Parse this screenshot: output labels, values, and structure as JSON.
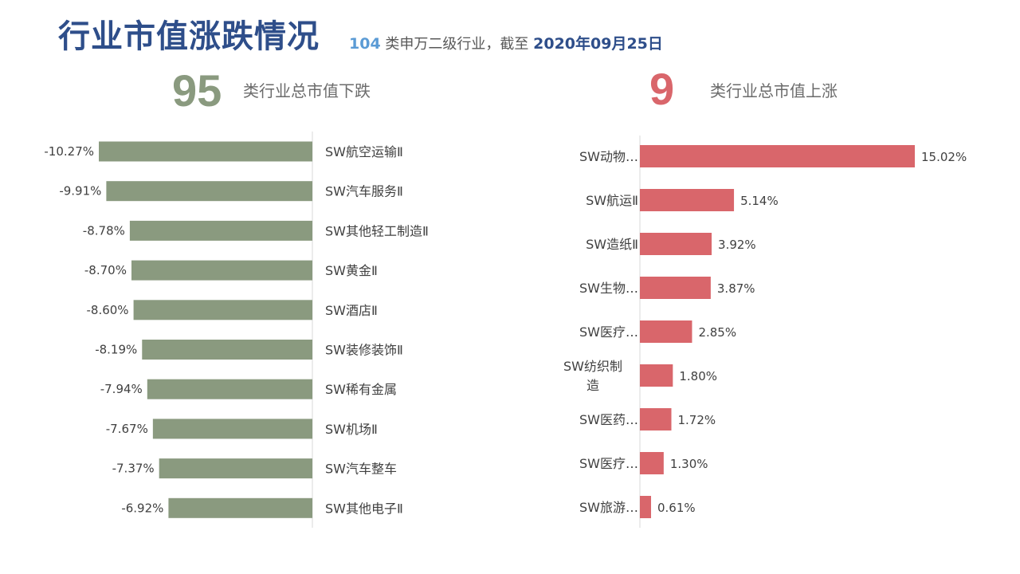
{
  "header": {
    "title": "行业市值涨跌情况",
    "subtitle_count": "104",
    "subtitle_text": " 类申万二级行业，截至 ",
    "subtitle_date": "2020年09月25日"
  },
  "summary": {
    "down_count": "95",
    "down_label": "类行业总市值下跌",
    "up_count": "9",
    "up_label": "类行业总市值上涨"
  },
  "colors": {
    "down_bar": "#8A9A7F",
    "up_bar": "#D9666B",
    "title": "#2E4E8A",
    "axis": "#D9D9D9"
  },
  "chart_data": [
    {
      "type": "bar",
      "orientation": "horizontal",
      "categories": [
        "SW航空运输Ⅱ",
        "SW汽车服务Ⅱ",
        "SW其他轻工制造Ⅱ",
        "SW黄金Ⅱ",
        "SW酒店Ⅱ",
        "SW装修装饰Ⅱ",
        "SW稀有金属",
        "SW机场Ⅱ",
        "SW汽车整车",
        "SW其他电子Ⅱ"
      ],
      "values": [
        -10.27,
        -9.91,
        -8.78,
        -8.7,
        -8.6,
        -8.19,
        -7.94,
        -7.67,
        -7.37,
        -6.92
      ],
      "value_labels": [
        "-10.27%",
        "-9.91%",
        "-8.78%",
        "-8.70%",
        "-8.60%",
        "-8.19%",
        "-7.94%",
        "-7.67%",
        "-7.37%",
        "-6.92%"
      ],
      "grid": false,
      "legend": "none"
    },
    {
      "type": "bar",
      "orientation": "horizontal",
      "categories": [
        "SW动物…",
        "SW航运Ⅱ",
        "SW造纸Ⅱ",
        "SW生物…",
        "SW医疗…",
        "SW纺织制造",
        "SW医药…",
        "SW医疗…",
        "SW旅游…"
      ],
      "values": [
        15.02,
        5.14,
        3.92,
        3.87,
        2.85,
        1.8,
        1.72,
        1.3,
        0.61
      ],
      "value_labels": [
        "15.02%",
        "5.14%",
        "3.92%",
        "3.87%",
        "2.85%",
        "1.80%",
        "1.72%",
        "1.30%",
        "0.61%"
      ],
      "grid": false,
      "legend": "none"
    }
  ]
}
